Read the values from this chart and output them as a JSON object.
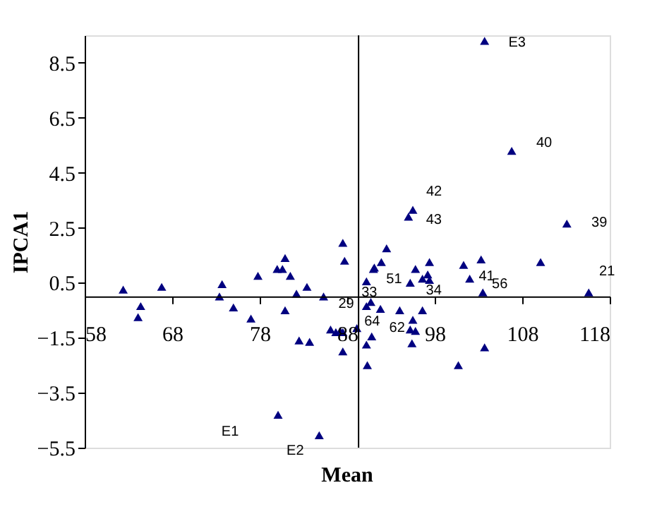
{
  "chart_data": {
    "type": "scatter",
    "xlabel": "Mean",
    "ylabel": "IPCA1",
    "xlim": [
      58,
      118
    ],
    "xticks": [
      58,
      68,
      78,
      88,
      98,
      108,
      118
    ],
    "ylim": [
      -5.5,
      9.5
    ],
    "yticks": [
      -5.5,
      -3.5,
      -1.5,
      0.5,
      2.5,
      4.5,
      6.5,
      8.5
    ],
    "grid": false,
    "marker": "triangle",
    "series": [
      {
        "color": "#000080",
        "x": [
          62.4,
          66.8,
          64.4,
          64.1,
          73.7,
          73.4,
          75.0,
          77.0,
          77.8,
          80.0,
          80.6,
          80.9,
          81.5,
          82.2,
          83.4,
          80.9,
          85.3,
          82.5,
          83.7,
          86.1,
          86.7,
          87.2,
          87.5,
          89.1,
          87.5,
          87.5,
          87.7,
          80.1,
          84.8,
          90.2,
          91.0,
          90.7,
          90.2,
          90.8,
          90.2,
          90.3,
          92.5,
          91.1,
          91.9,
          97.4,
          101.3,
          103.3,
          110.1,
          95.8,
          95.2,
          96.6,
          97.2,
          97.4,
          102.0,
          103.5,
          115.6,
          91.8,
          94.0,
          96.6,
          95.5,
          95.2,
          95.8,
          95.4,
          103.7,
          100.7,
          103.7,
          106.8,
          95.5,
          95.0,
          113.1
        ],
        "values": [
          0.25,
          0.35,
          -0.35,
          -0.75,
          0.45,
          0.0,
          -0.4,
          -0.8,
          0.75,
          1.0,
          1.0,
          1.4,
          0.75,
          0.1,
          0.35,
          -0.5,
          0.0,
          -1.6,
          -1.65,
          -1.2,
          -1.3,
          -1.25,
          -1.3,
          -1.15,
          -2.0,
          1.95,
          1.3,
          -4.3,
          -5.05,
          0.55,
          1.0,
          -0.2,
          -0.35,
          -1.45,
          -1.75,
          -2.5,
          1.75,
          1.05,
          1.25,
          1.25,
          1.15,
          1.35,
          1.25,
          1.0,
          0.5,
          0.65,
          0.8,
          0.6,
          0.65,
          0.15,
          0.15,
          -0.45,
          -0.5,
          -0.5,
          -0.85,
          -1.2,
          -1.25,
          -1.7,
          -1.85,
          -2.5,
          9.3,
          5.3,
          3.15,
          2.9,
          2.65
        ]
      }
    ],
    "ref_lines": [
      {
        "axis": "x",
        "value": 89.3,
        "color": "#000000"
      }
    ],
    "annotations": [
      {
        "text": "E3",
        "x": 103.7,
        "y": 9.3
      },
      {
        "text": "40",
        "x": 106.8,
        "y": 5.3
      },
      {
        "text": "42",
        "x": 95.5,
        "y": 3.15
      },
      {
        "text": "43",
        "x": 95.0,
        "y": 2.9
      },
      {
        "text": "39",
        "x": 113.1,
        "y": 2.65
      },
      {
        "text": "21",
        "x": 115.6,
        "y": 0.15
      },
      {
        "text": "56",
        "x": 103.5,
        "y": 0.15
      },
      {
        "text": "41",
        "x": 102.0,
        "y": 0.65
      },
      {
        "text": "51",
        "x": 91.1,
        "y": 1.05
      },
      {
        "text": "34",
        "x": 96.6,
        "y": -0.5
      },
      {
        "text": "33",
        "x": 90.2,
        "y": 0.55
      },
      {
        "text": "29",
        "x": 85.3,
        "y": 0.0
      },
      {
        "text": "64",
        "x": 90.2,
        "y": -0.35
      },
      {
        "text": "62",
        "x": 90.8,
        "y": -1.45
      },
      {
        "text": "E1",
        "x": 80.1,
        "y": -4.3
      },
      {
        "text": "E2",
        "x": 84.8,
        "y": -5.05
      }
    ]
  }
}
